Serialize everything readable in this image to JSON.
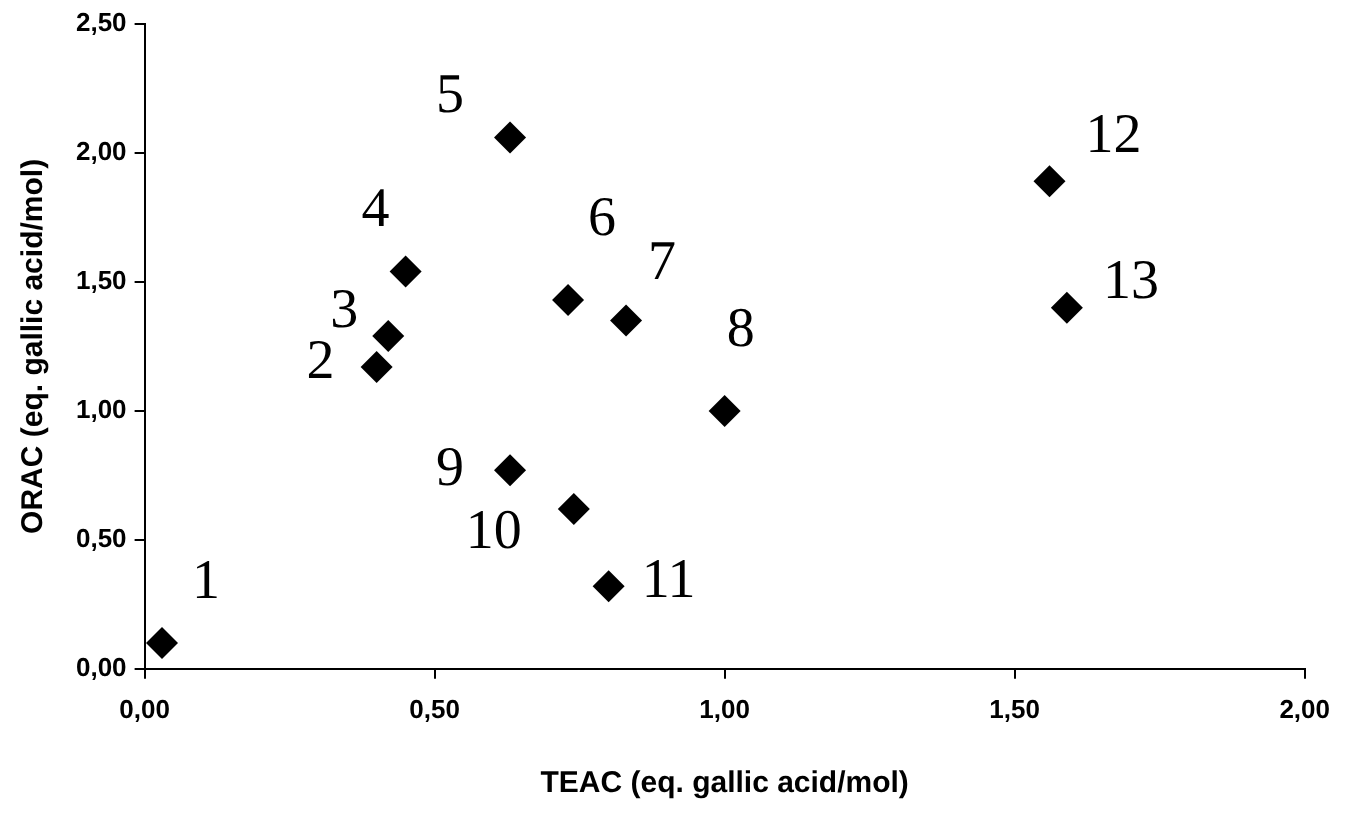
{
  "chart_data": {
    "type": "scatter",
    "xlabel": "TEAC (eq. gallic acid/mol)",
    "ylabel": "ORAC (eq. gallic acid/mol)",
    "x": [
      0.03,
      0.4,
      0.42,
      0.45,
      0.63,
      0.73,
      0.83,
      1.0,
      0.63,
      0.74,
      0.8,
      1.56,
      1.59
    ],
    "values": [
      0.1,
      1.17,
      1.29,
      1.54,
      2.06,
      1.43,
      1.35,
      1.0,
      0.77,
      0.62,
      0.32,
      1.89,
      1.4
    ],
    "color": "#000000",
    "marker": "diamond",
    "grid": false,
    "legend": false,
    "xlim": [
      0,
      2
    ],
    "xticks": [
      {
        "value": 0,
        "label": "0,00"
      },
      {
        "value": 0.5,
        "label": "0,50"
      },
      {
        "value": 1,
        "label": "1,00"
      },
      {
        "value": 1.5,
        "label": "1,50"
      },
      {
        "value": 2,
        "label": "2,00"
      }
    ],
    "ylim": [
      0,
      2.5
    ],
    "yticks": [
      {
        "value": 0,
        "label": "0,00"
      },
      {
        "value": 0.5,
        "label": "0,50"
      },
      {
        "value": 1,
        "label": "1,00"
      },
      {
        "value": 1.5,
        "label": "1,50"
      },
      {
        "value": 2,
        "label": "2,00"
      },
      {
        "value": 2.5,
        "label": "2,50"
      }
    ],
    "annotations": [
      {
        "text": "1",
        "x": 0.03,
        "y": 0.1
      },
      {
        "text": "2",
        "x": 0.4,
        "y": 1.17
      },
      {
        "text": "3",
        "x": 0.42,
        "y": 1.29
      },
      {
        "text": "4",
        "x": 0.45,
        "y": 1.54
      },
      {
        "text": "5",
        "x": 0.63,
        "y": 2.06
      },
      {
        "text": "6",
        "x": 0.73,
        "y": 1.43
      },
      {
        "text": "7",
        "x": 0.83,
        "y": 1.35
      },
      {
        "text": "8",
        "x": 1.0,
        "y": 1.0
      },
      {
        "text": "9",
        "x": 0.63,
        "y": 0.77
      },
      {
        "text": "10",
        "x": 0.74,
        "y": 0.62
      },
      {
        "text": "11",
        "x": 0.8,
        "y": 0.32
      },
      {
        "text": "12",
        "x": 1.56,
        "y": 1.89
      },
      {
        "text": "13",
        "x": 1.59,
        "y": 1.4
      }
    ]
  }
}
